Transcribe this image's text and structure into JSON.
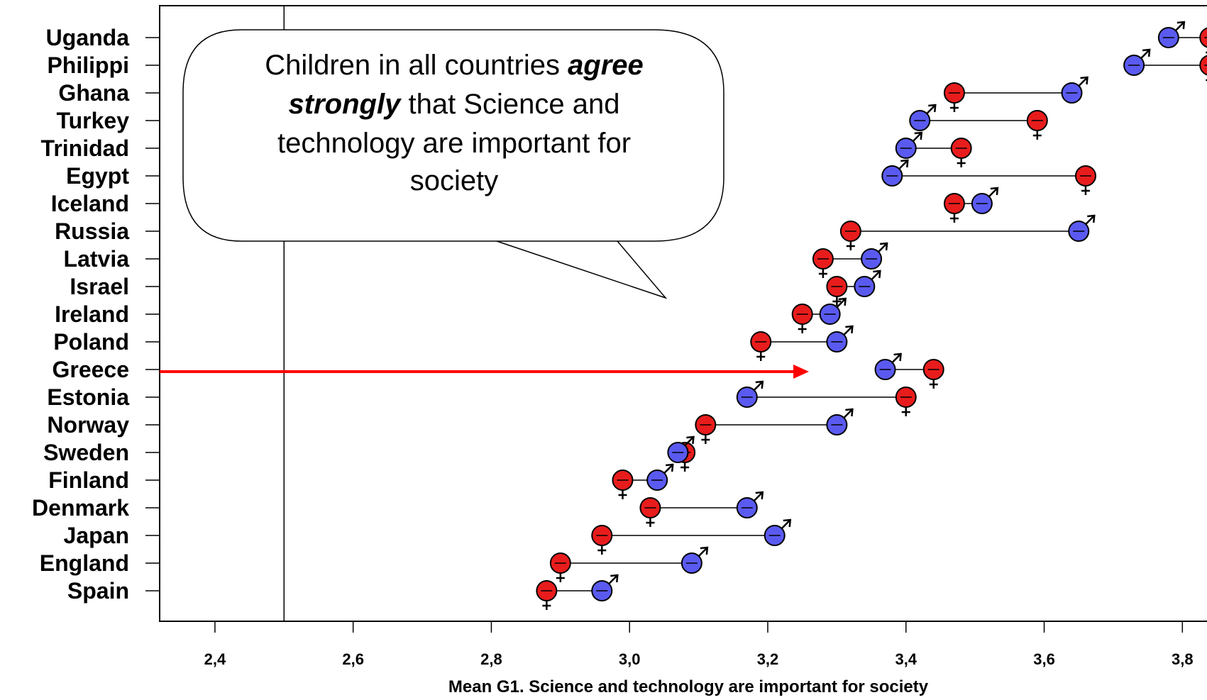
{
  "chart_data": {
    "type": "scatter",
    "title": "",
    "xlabel": "Mean G1. Science and technology are important for society",
    "ylabel": "",
    "xlim": [
      2.32,
      3.85
    ],
    "xticks": [
      2.4,
      2.6,
      2.8,
      3.0,
      3.2,
      3.4,
      3.6,
      3.8
    ],
    "xtick_labels": [
      "2,4",
      "2,6",
      "2,8",
      "3,0",
      "3,2",
      "3,4",
      "3,6",
      "3,8"
    ],
    "reference_line_x": 2.5,
    "grid": false,
    "categories": [
      "Uganda",
      "Philippi",
      "Ghana",
      "Turkey",
      "Trinidad",
      "Egypt",
      "Iceland",
      "Russia",
      "Latvia",
      "Israel",
      "Ireland",
      "Poland",
      "Greece",
      "Estonia",
      "Norway",
      "Sweden",
      "Finland",
      "Denmark",
      "Japan",
      "England",
      "Spain"
    ],
    "series": [
      {
        "name": "female",
        "marker": "female-symbol",
        "color": "#e81c1c",
        "values": [
          3.84,
          3.84,
          3.47,
          3.59,
          3.48,
          3.66,
          3.47,
          3.32,
          3.28,
          3.3,
          3.25,
          3.19,
          3.44,
          3.4,
          3.11,
          3.08,
          2.99,
          3.03,
          2.96,
          2.9,
          2.88
        ]
      },
      {
        "name": "male",
        "marker": "male-symbol",
        "color": "#5a5af0",
        "values": [
          3.78,
          3.73,
          3.64,
          3.42,
          3.4,
          3.38,
          3.51,
          3.65,
          3.35,
          3.34,
          3.29,
          3.3,
          3.37,
          3.17,
          3.3,
          3.07,
          3.04,
          3.17,
          3.21,
          3.09,
          2.96
        ]
      }
    ],
    "highlight": {
      "category": "Greece",
      "arrow_color": "#ff0000"
    },
    "annotation": {
      "lines": [
        [
          {
            "text": "Children in all countries ",
            "style": "normal"
          },
          {
            "text": "agree",
            "style": "bold-italic"
          }
        ],
        [
          {
            "text": "strongly",
            "style": "bold-italic"
          },
          {
            "text": " that Science and",
            "style": "normal"
          }
        ],
        [
          {
            "text": "technology are important for",
            "style": "normal"
          }
        ],
        [
          {
            "text": "society",
            "style": "normal"
          }
        ]
      ]
    }
  }
}
